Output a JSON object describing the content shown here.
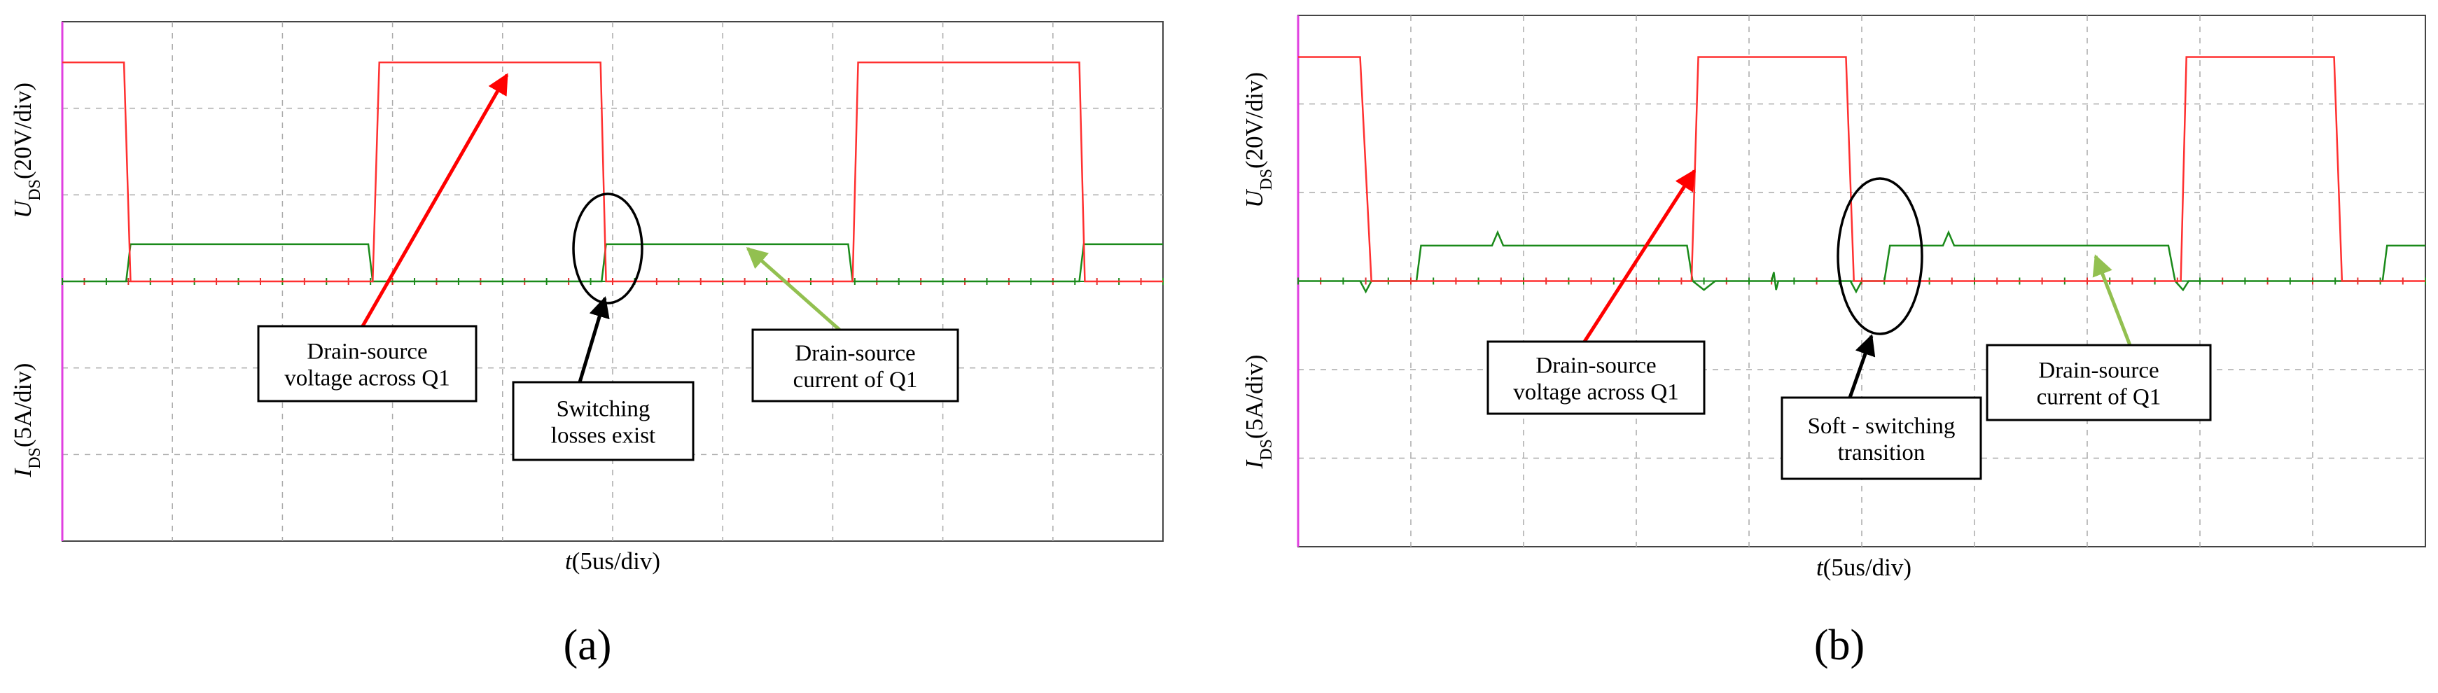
{
  "panels": [
    {
      "label": "(a)",
      "y_upper": {
        "var": "U",
        "sub": "DS",
        "unit": "(20V/div)"
      },
      "y_lower": {
        "var": "I",
        "sub": "DS",
        "unit": "(5A/div)"
      },
      "x_axis": {
        "var": "t",
        "unit": "(5us/div)"
      },
      "annotations": [
        {
          "lines": [
            "Drain-source",
            "voltage across Q1"
          ]
        },
        {
          "lines": [
            "Switching",
            "losses exist"
          ]
        },
        {
          "lines": [
            "Drain-source",
            "current of Q1"
          ]
        }
      ]
    },
    {
      "label": "(b)",
      "y_upper": {
        "var": "U",
        "sub": "DS",
        "unit": "(20V/div)"
      },
      "y_lower": {
        "var": "I",
        "sub": "DS",
        "unit": "(5A/div)"
      },
      "x_axis": {
        "var": "t",
        "unit": "(5us/div)"
      },
      "annotations": [
        {
          "lines": [
            "Drain-source",
            "voltage across Q1"
          ]
        },
        {
          "lines": [
            "Soft - switching",
            "transition"
          ]
        },
        {
          "lines": [
            "Drain-source",
            "current of Q1"
          ]
        }
      ]
    }
  ]
}
